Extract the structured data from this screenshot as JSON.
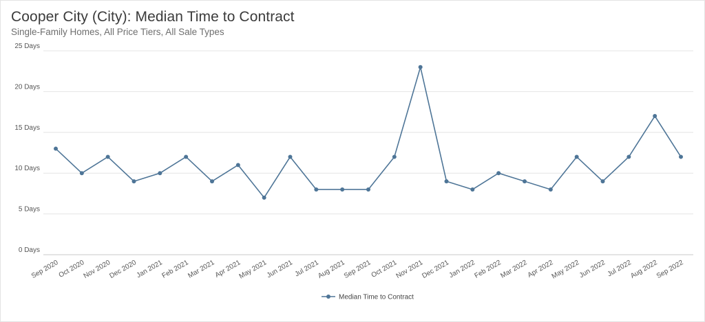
{
  "header": {
    "title": "Cooper City (City): Median Time to Contract",
    "subtitle": "Single-Family Homes, All Price Tiers, All Sale Types"
  },
  "chart_data": {
    "type": "line",
    "title": "Cooper City (City): Median Time to Contract",
    "subtitle": "Single-Family Homes, All Price Tiers, All Sale Types",
    "xlabel": "",
    "ylabel": "",
    "categories": [
      "Sep 2020",
      "Oct 2020",
      "Nov 2020",
      "Dec 2020",
      "Jan 2021",
      "Feb 2021",
      "Mar 2021",
      "Apr 2021",
      "May 2021",
      "Jun 2021",
      "Jul 2021",
      "Aug 2021",
      "Sep 2021",
      "Oct 2021",
      "Nov 2021",
      "Dec 2021",
      "Jan 2022",
      "Feb 2022",
      "Mar 2022",
      "Apr 2022",
      "May 2022",
      "Jun 2022",
      "Jul 2022",
      "Aug 2022",
      "Sep 2022"
    ],
    "series": [
      {
        "name": "Median Time to Contract",
        "values": [
          13,
          10,
          12,
          9,
          10,
          12,
          9,
          11,
          7,
          12,
          8,
          8,
          8,
          12,
          23,
          9,
          8,
          10,
          9,
          8,
          12,
          9,
          12,
          17,
          12
        ],
        "color": "#4e7597"
      }
    ],
    "ylim": [
      0,
      25
    ],
    "yticks": [
      0,
      5,
      10,
      15,
      20,
      25
    ],
    "ytick_labels": [
      "0 Days",
      "5 Days",
      "10 Days",
      "15 Days",
      "20 Days",
      "25 Days"
    ],
    "grid": true,
    "legend": "bottom-center"
  }
}
